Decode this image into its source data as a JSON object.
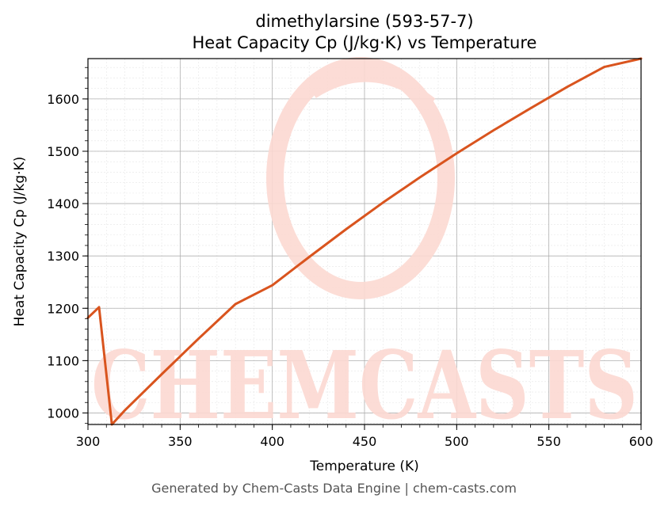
{
  "chart_data": {
    "type": "line",
    "title": "dimethylarsine (593-57-7)",
    "subtitle": "Heat Capacity Cp (J/kg·K) vs Temperature",
    "xlabel": "Temperature (K)",
    "ylabel": "Heat Capacity Cp (J/kg·K)",
    "xlim": [
      300,
      600
    ],
    "ylim": [
      978,
      1677
    ],
    "xticks": [
      300,
      350,
      400,
      450,
      500,
      550,
      600
    ],
    "yticks": [
      1000,
      1100,
      1200,
      1300,
      1400,
      1500,
      1600
    ],
    "grid": true,
    "legend": "none",
    "series": [
      {
        "color": "#d9541e",
        "x": [
          300,
          306,
          313,
          320,
          340,
          360,
          380,
          400,
          420,
          440,
          460,
          480,
          500,
          520,
          540,
          560,
          580,
          600
        ],
        "y": [
          1182,
          1202,
          978,
          1005,
          1074,
          1142,
          1208,
          1244,
          1298,
          1351,
          1402,
          1450,
          1496,
          1540,
          1582,
          1623,
          1661,
          1677
        ]
      }
    ]
  },
  "watermark": {
    "text": "CHEMCASTS",
    "color": "#fcd9d2"
  },
  "footer": "Generated by Chem-Casts Data Engine | chem-casts.com"
}
